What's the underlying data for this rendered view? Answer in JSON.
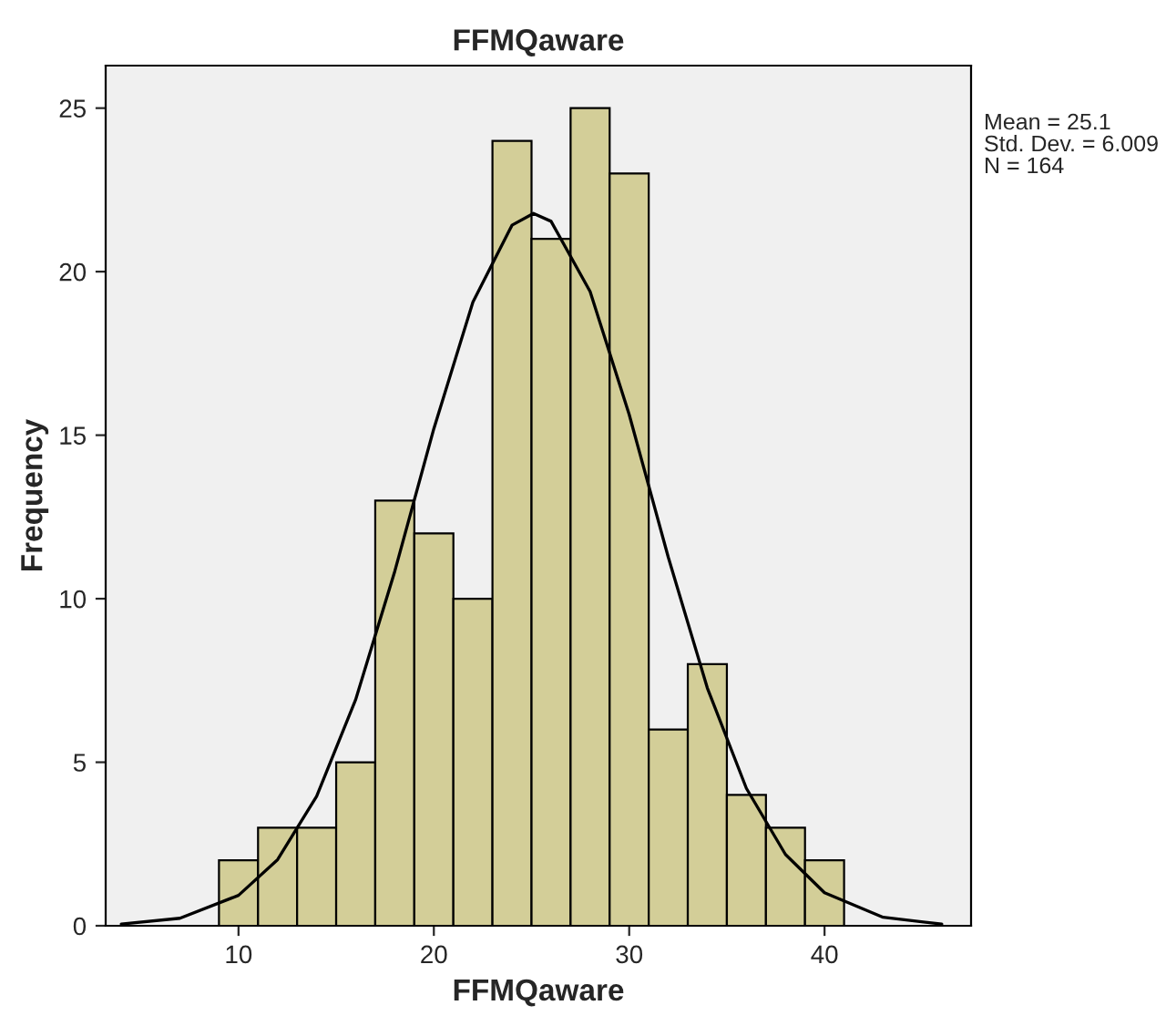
{
  "chart_data": {
    "type": "histogram",
    "title": "FFMQaware",
    "xlabel": "FFMQaware",
    "ylabel": "Frequency",
    "bins": [
      9,
      11,
      13,
      15,
      17,
      19,
      21,
      23,
      25,
      27,
      29,
      31,
      33,
      35,
      37,
      39,
      41
    ],
    "values": [
      2,
      3,
      3,
      5,
      13,
      12,
      10,
      24,
      21,
      25,
      23,
      6,
      8,
      4,
      3,
      2
    ],
    "color": "#d3ce98",
    "series": [
      {
        "type": "line",
        "color": "#000000",
        "x": [
          4,
          7,
          10,
          12,
          14,
          16,
          18,
          20,
          22,
          24,
          25.1,
          26,
          28,
          30,
          32,
          34,
          36,
          38,
          40,
          43,
          46
        ],
        "values": [
          0.05,
          0.23,
          0.93,
          2.02,
          3.96,
          6.92,
          10.84,
          15.2,
          19.07,
          21.42,
          21.78,
          21.54,
          19.39,
          15.63,
          11.27,
          7.27,
          4.2,
          2.18,
          1.01,
          0.26,
          0.05
        ]
      }
    ],
    "xlim": [
      3.2,
      47.5
    ],
    "ylim": [
      0,
      26.3
    ],
    "xticks": [
      10,
      20,
      30,
      40
    ],
    "yticks": [
      0,
      5,
      10,
      15,
      20,
      25
    ],
    "grid": false,
    "legend": false,
    "annotations": [
      "Mean = 25.1",
      "Std. Dev. = 6.009",
      "N = 164"
    ]
  }
}
